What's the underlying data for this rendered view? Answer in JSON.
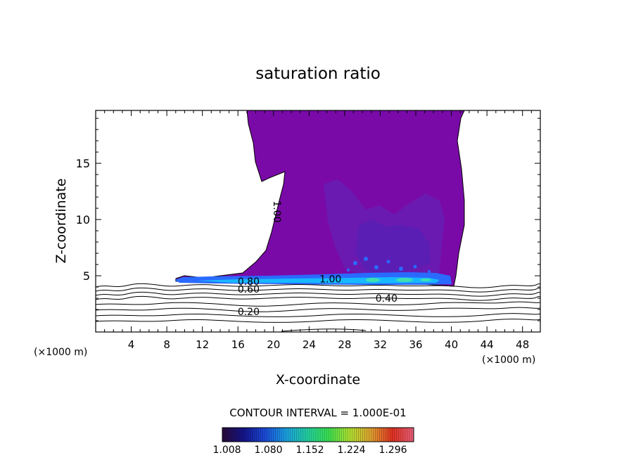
{
  "chart_data": {
    "type": "contour",
    "title": "saturation ratio",
    "xlabel": "X-coordinate",
    "ylabel": "Z-coordinate",
    "x_unit_left": "(×1000 m)",
    "x_unit_right": "(×1000 m)",
    "xlim": [
      0,
      50
    ],
    "ylim": [
      0,
      19.7
    ],
    "x_ticks": [
      4,
      8,
      12,
      16,
      20,
      24,
      28,
      32,
      36,
      40,
      44,
      48
    ],
    "y_ticks": [
      5,
      10,
      15
    ],
    "contour_labels": [
      {
        "text": "1.00",
        "x": 20.0,
        "z": 10.7,
        "rotated": true
      },
      {
        "text": "1.00",
        "x": 26.4,
        "z": 4.4
      },
      {
        "text": "0.80",
        "x": 17.2,
        "z": 4.2
      },
      {
        "text": "0.60",
        "x": 17.2,
        "z": 3.5
      },
      {
        "text": "0.40",
        "x": 32.7,
        "z": 2.7
      },
      {
        "text": "0.20",
        "x": 17.2,
        "z": 1.5
      }
    ],
    "contour_interval_text": "CONTOUR INTERVAL = 1.000E-01",
    "colorbar": {
      "min": 1.0,
      "max": 1.332,
      "tick_labels": [
        "1.008",
        "1.080",
        "1.152",
        "1.224",
        "1.296"
      ],
      "colors": [
        "#2a0a3a",
        "#14148a",
        "#1a4ad8",
        "#1aa0e0",
        "#22d0a0",
        "#3ae050",
        "#b0e030",
        "#e0a030",
        "#e03020",
        "#e8607a"
      ]
    },
    "colors": {
      "saturated_region": "#7a0aa8",
      "inner_region": "#6a1ab0",
      "core_region": "#5a1eb4",
      "band_outer": "#2a6aff",
      "band_inner": "#18b8ff",
      "band_hot": "#3fe0b0"
    }
  }
}
